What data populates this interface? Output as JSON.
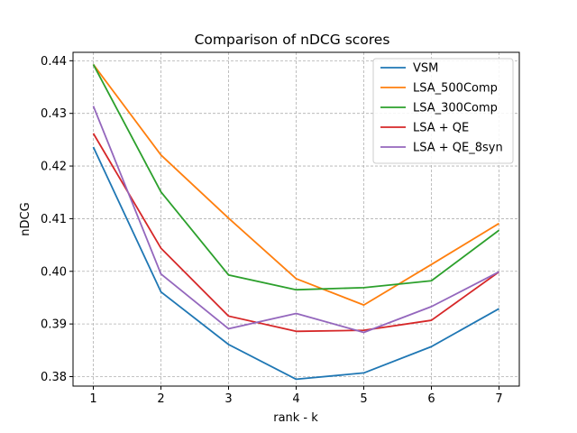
{
  "chart_data": {
    "type": "line",
    "title": "Comparison of nDCG scores",
    "xlabel": "rank - k",
    "ylabel": "nDCG",
    "x": [
      1,
      2,
      3,
      4,
      5,
      6,
      7
    ],
    "xticks": [
      "1",
      "2",
      "3",
      "4",
      "5",
      "6",
      "7"
    ],
    "xlim": [
      0.7,
      7.3
    ],
    "yticks": [
      "0.38",
      "0.39",
      "0.40",
      "0.41",
      "0.42",
      "0.43",
      "0.44"
    ],
    "ytick_values": [
      0.38,
      0.39,
      0.4,
      0.41,
      0.42,
      0.43,
      0.44
    ],
    "ylim": [
      0.3782,
      0.4416
    ],
    "grid": true,
    "legend_position": "top-right",
    "series": [
      {
        "name": "VSM",
        "color": "#1f77b4",
        "values": [
          0.4236,
          0.3961,
          0.3861,
          0.3795,
          0.3807,
          0.3857,
          0.3929
        ]
      },
      {
        "name": "LSA_500Comp",
        "color": "#ff7f0e",
        "values": [
          0.4393,
          0.4221,
          0.4101,
          0.3986,
          0.3936,
          0.4013,
          0.4091
        ]
      },
      {
        "name": "LSA_300Comp",
        "color": "#2ca02c",
        "values": [
          0.4393,
          0.4151,
          0.3993,
          0.3965,
          0.3969,
          0.3982,
          0.4078
        ]
      },
      {
        "name": "LSA + QE",
        "color": "#d62728",
        "values": [
          0.4262,
          0.4044,
          0.3915,
          0.3886,
          0.3888,
          0.3907,
          0.3999
        ]
      },
      {
        "name": "LSA + QE_8syn",
        "color": "#9467bd",
        "values": [
          0.4314,
          0.3995,
          0.3891,
          0.392,
          0.3884,
          0.3933,
          0.3999
        ]
      }
    ]
  }
}
